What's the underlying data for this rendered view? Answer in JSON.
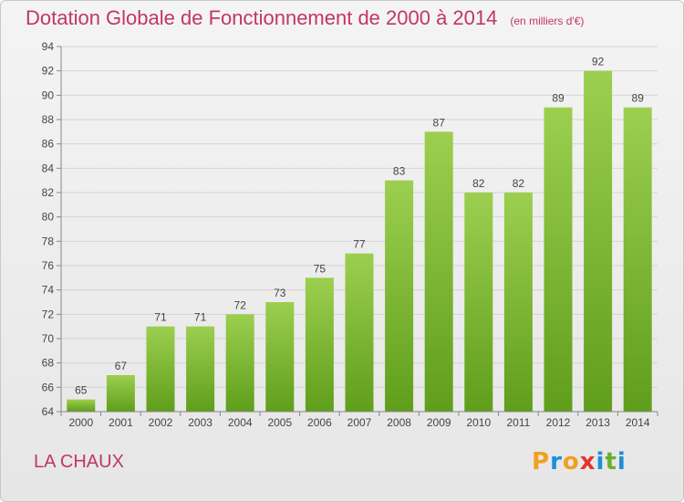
{
  "header": {
    "title": "Dotation Globale de Fonctionnement de 2000 à 2014",
    "subtitle": "(en milliers d'€)"
  },
  "footer": {
    "commune": "LA CHAUX",
    "logo_letters": [
      "P",
      "r",
      "o",
      "x",
      "i",
      "t",
      "i"
    ]
  },
  "colors": {
    "title": "#c1356a",
    "bar_light": "#9ccf4f",
    "bar_dark": "#5f9e1b",
    "logo": [
      "#f0a020",
      "#1e8fd6",
      "#f0a020",
      "#e3342f",
      "#1e8fd6",
      "#6ab030",
      "#1e8fd6"
    ]
  },
  "chart_data": {
    "type": "bar",
    "categories": [
      "2000",
      "2001",
      "2002",
      "2003",
      "2004",
      "2005",
      "2006",
      "2007",
      "2008",
      "2009",
      "2010",
      "2011",
      "2012",
      "2013",
      "2014"
    ],
    "values": [
      65,
      67,
      71,
      71,
      72,
      73,
      75,
      77,
      83,
      87,
      82,
      82,
      89,
      92,
      89
    ],
    "ylim": [
      64,
      94
    ],
    "yticks": [
      64,
      66,
      68,
      70,
      72,
      74,
      76,
      78,
      80,
      82,
      84,
      86,
      88,
      90,
      92,
      94
    ],
    "grid": true,
    "xlabel": "",
    "ylabel": ""
  }
}
